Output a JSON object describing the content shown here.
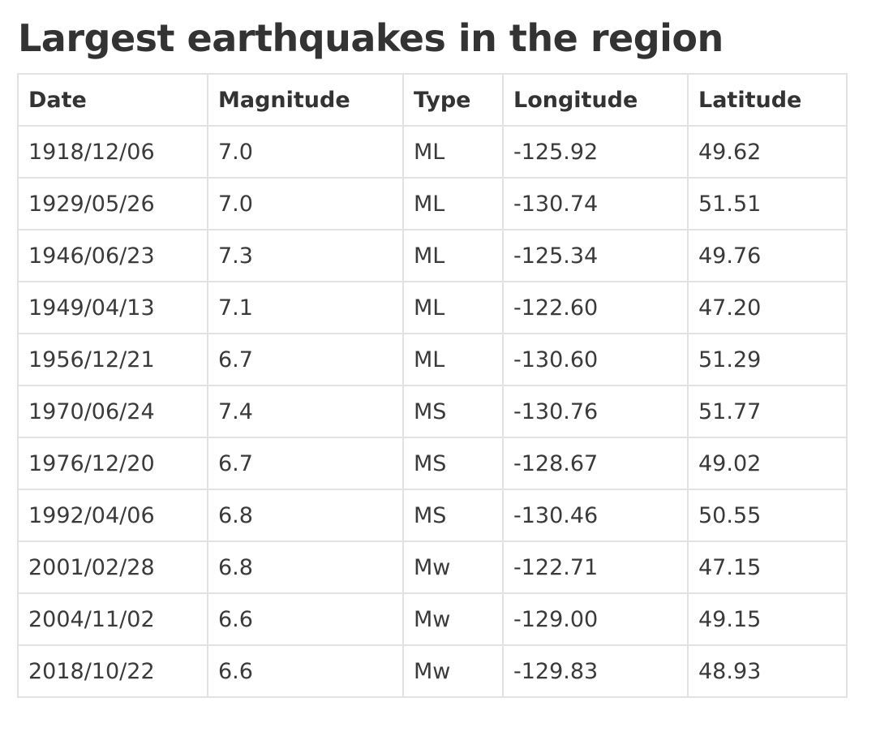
{
  "page": {
    "title": "Largest earthquakes in the region"
  },
  "table": {
    "headers": [
      "Date",
      "Magnitude",
      "Type",
      "Longitude",
      "Latitude"
    ],
    "rows": [
      [
        "1918/12/06",
        "7.0",
        "ML",
        "-125.92",
        "49.62"
      ],
      [
        "1929/05/26",
        "7.0",
        "ML",
        "-130.74",
        "51.51"
      ],
      [
        "1946/06/23",
        "7.3",
        "ML",
        "-125.34",
        "49.76"
      ],
      [
        "1949/04/13",
        "7.1",
        "ML",
        "-122.60",
        "47.20"
      ],
      [
        "1956/12/21",
        "6.7",
        "ML",
        "-130.60",
        "51.29"
      ],
      [
        "1970/06/24",
        "7.4",
        "MS",
        "-130.76",
        "51.77"
      ],
      [
        "1976/12/20",
        "6.7",
        "MS",
        "-128.67",
        "49.02"
      ],
      [
        "1992/04/06",
        "6.8",
        "MS",
        "-130.46",
        "50.55"
      ],
      [
        "2001/02/28",
        "6.8",
        "Mw",
        "-122.71",
        "47.15"
      ],
      [
        "2004/11/02",
        "6.6",
        "Mw",
        "-129.00",
        "49.15"
      ],
      [
        "2018/10/22",
        "6.6",
        "Mw",
        "-129.83",
        "48.93"
      ]
    ]
  }
}
